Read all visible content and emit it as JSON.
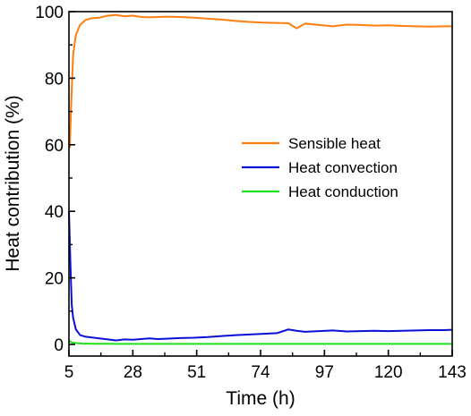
{
  "colors": {
    "sensible": "#ff7f0e",
    "convection": "#0a10d6",
    "conduction": "#1ee01e",
    "axis": "#000000",
    "background": "#ffffff"
  },
  "chart_data": {
    "type": "line",
    "xlabel": "Time (h)",
    "ylabel": "Heat contribution (%)",
    "xlim": [
      5,
      143
    ],
    "ylim": [
      -3.5,
      100
    ],
    "xticks": [
      5,
      28,
      51,
      74,
      97,
      120,
      143
    ],
    "yticks": [
      0,
      20,
      40,
      60,
      80,
      100
    ],
    "grid": false,
    "legend_position": "center-right",
    "series": [
      {
        "name": "Sensible heat",
        "color_key": "sensible",
        "x": [
          5.3,
          5.8,
          6.5,
          7.5,
          9,
          11,
          13,
          16,
          19,
          22,
          25,
          28,
          31,
          34,
          37,
          40,
          45,
          50,
          55,
          60,
          65,
          70,
          75,
          80,
          84,
          87,
          90,
          95,
          100,
          105,
          110,
          115,
          120,
          125,
          130,
          135,
          140,
          143
        ],
        "y": [
          59,
          72,
          87,
          93,
          96,
          97.5,
          98,
          98.2,
          98.8,
          99,
          98.6,
          98.8,
          98.4,
          98.3,
          98.4,
          98.5,
          98.4,
          98.2,
          97.9,
          97.6,
          97.2,
          96.9,
          96.7,
          96.6,
          96.5,
          95.0,
          96.4,
          96.0,
          95.6,
          96.1,
          96.0,
          95.8,
          95.9,
          95.7,
          95.6,
          95.5,
          95.6,
          95.6
        ]
      },
      {
        "name": "Heat convection",
        "color_key": "convection",
        "x": [
          5,
          5.5,
          6,
          6.5,
          7.5,
          9,
          11,
          13,
          16,
          19,
          22,
          25,
          28,
          31,
          34,
          37,
          40,
          45,
          50,
          55,
          60,
          65,
          70,
          75,
          80,
          84,
          87,
          90,
          95,
          100,
          105,
          110,
          115,
          120,
          125,
          130,
          135,
          140,
          143
        ],
        "y": [
          40,
          25,
          12,
          8,
          4.5,
          2.8,
          2.3,
          2.1,
          1.8,
          1.5,
          1.2,
          1.5,
          1.4,
          1.6,
          1.8,
          1.6,
          1.7,
          1.9,
          2.0,
          2.2,
          2.5,
          2.8,
          3.0,
          3.2,
          3.4,
          4.5,
          4.1,
          3.8,
          4.0,
          4.2,
          3.9,
          4.0,
          4.1,
          4.0,
          4.1,
          4.2,
          4.3,
          4.3,
          4.4
        ]
      },
      {
        "name": "Heat conduction",
        "color_key": "conduction",
        "x": [
          5,
          6,
          8,
          10,
          14,
          20,
          30,
          40,
          60,
          80,
          100,
          120,
          143
        ],
        "y": [
          1.2,
          0.6,
          0.35,
          0.25,
          0.2,
          0.18,
          0.16,
          0.15,
          0.15,
          0.15,
          0.15,
          0.15,
          0.15
        ]
      }
    ]
  }
}
